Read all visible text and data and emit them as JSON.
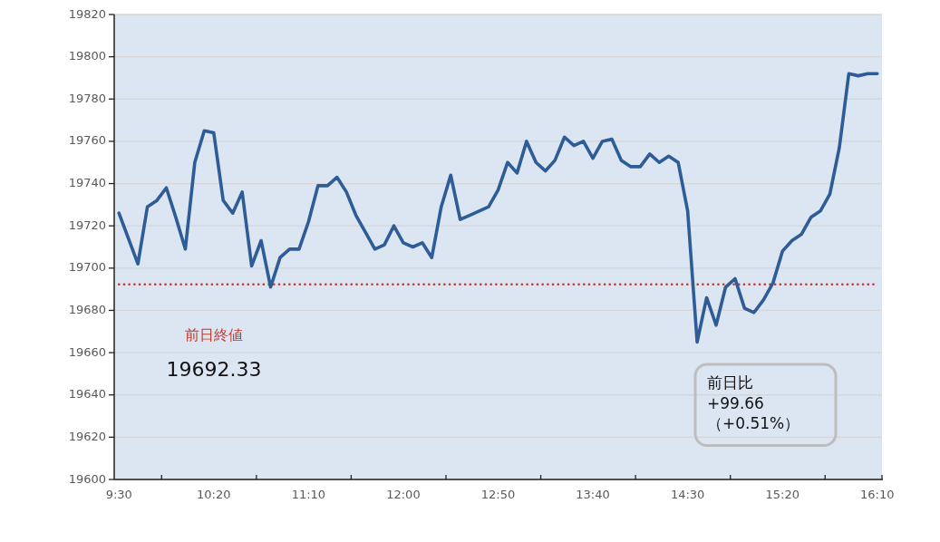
{
  "chart_data": {
    "type": "line",
    "categories": [
      "9:30",
      null,
      null,
      null,
      null,
      null,
      null,
      null,
      null,
      null,
      "10:20",
      null,
      null,
      null,
      null,
      null,
      null,
      null,
      null,
      null,
      "11:10",
      null,
      null,
      null,
      null,
      null,
      null,
      null,
      null,
      null,
      "12:00",
      null,
      null,
      null,
      null,
      null,
      null,
      null,
      null,
      null,
      "12:50",
      null,
      null,
      null,
      null,
      null,
      null,
      null,
      null,
      null,
      "13:40",
      null,
      null,
      null,
      null,
      null,
      null,
      null,
      null,
      null,
      "14:30",
      null,
      null,
      null,
      null,
      null,
      null,
      null,
      null,
      null,
      "15:20",
      null,
      null,
      null,
      null,
      null,
      null,
      null,
      null,
      null,
      "16:10"
    ],
    "series": [
      {
        "color": "#2e5c96",
        "values": [
          19726,
          19714,
          19702,
          19729,
          19732,
          19738,
          19724,
          19709,
          19750,
          19765,
          19764,
          19732,
          19726,
          19736,
          19701,
          19713,
          19691,
          19705,
          19709,
          19709,
          19722,
          19739,
          19739,
          19743,
          19736,
          19725,
          19717,
          19709,
          19711,
          19720,
          19712,
          19710,
          19712,
          19705,
          19729,
          19744,
          19723,
          19725,
          19727,
          19729,
          19737,
          19750,
          19745,
          19760,
          19750,
          19746,
          19751,
          19762,
          19758,
          19760,
          19752,
          19760,
          19761,
          19751,
          19748,
          19748,
          19754,
          19750,
          19753,
          19750,
          19727,
          19665,
          19686,
          19673,
          19691,
          19695,
          19681,
          19679,
          19685,
          19693,
          19708,
          19713,
          19716,
          19724,
          19727,
          19735,
          19757,
          19792,
          19791,
          19792,
          19792
        ]
      }
    ],
    "ylim": [
      19600,
      19820
    ],
    "yticks": [
      19600,
      19620,
      19640,
      19660,
      19680,
      19700,
      19720,
      19740,
      19760,
      19780,
      19800,
      19820
    ],
    "grid": "y",
    "ref_lines": [
      {
        "axis": "y",
        "value": 19692.33,
        "label": "前日終値",
        "color": "#c0392b",
        "line_style": "dotted"
      }
    ],
    "annotations": [
      "19692.33",
      "前日比\n+99.66\n（+0.51%）"
    ]
  }
}
